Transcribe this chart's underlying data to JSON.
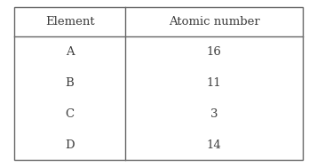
{
  "headers": [
    "Element",
    "Atomic number"
  ],
  "rows": [
    [
      "A",
      "16"
    ],
    [
      "B",
      "11"
    ],
    [
      "C",
      "3"
    ],
    [
      "D",
      "14"
    ]
  ],
  "background_color": "#ffffff",
  "text_color": "#3d3d3d",
  "border_color": "#666666",
  "header_fontsize": 9.5,
  "cell_fontsize": 9.5,
  "col_split": 0.385,
  "fig_width": 3.57,
  "fig_height": 1.88,
  "dpi": 100
}
